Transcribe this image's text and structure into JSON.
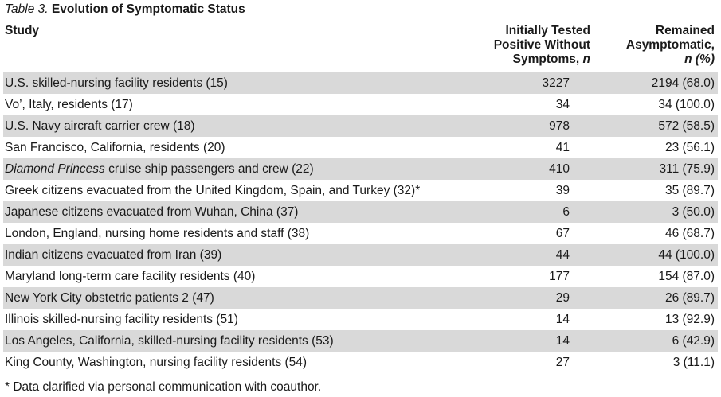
{
  "table": {
    "label": "Table 3.",
    "title": "Evolution of Symptomatic Status",
    "headers": {
      "study": "Study",
      "tested_line1": "Initially Tested",
      "tested_line2": "Positive Without",
      "tested_line3": "Symptoms,",
      "tested_n": "n",
      "remained_line1": "Remained",
      "remained_line2": "Asymptomatic,",
      "remained_n": "n (%)"
    },
    "rows": [
      {
        "study": "U.S. skilled-nursing facility residents (15)",
        "tested": "3227",
        "remained": "2194 (68.0)"
      },
      {
        "study": "Vo’, Italy, residents (17)",
        "tested": "34",
        "remained": "34 (100.0)"
      },
      {
        "study": "U.S. Navy aircraft carrier crew (18)",
        "tested": "978",
        "remained": "572 (58.5)"
      },
      {
        "study": "San Francisco, California, residents (20)",
        "tested": "41",
        "remained": "23 (56.1)"
      },
      {
        "study_italic": "Diamond Princess",
        "study_rest": " cruise ship passengers and crew (22)",
        "tested": "410",
        "remained": "311 (75.9)"
      },
      {
        "study": "Greek citizens evacuated from the United Kingdom, Spain, and Turkey (32)*",
        "tested": "39",
        "remained": "35 (89.7)"
      },
      {
        "study": "Japanese citizens evacuated from Wuhan, China (37)",
        "tested": "6",
        "remained": "3 (50.0)"
      },
      {
        "study": "London, England, nursing home residents and staff (38)",
        "tested": "67",
        "remained": "46 (68.7)"
      },
      {
        "study": "Indian citizens evacuated from Iran (39)",
        "tested": "44",
        "remained": "44 (100.0)"
      },
      {
        "study": "Maryland long-term care facility residents (40)",
        "tested": "177",
        "remained": "154 (87.0)"
      },
      {
        "study": "New York City obstetric patients 2 (47)",
        "tested": "29",
        "remained": "26 (89.7)"
      },
      {
        "study": "Illinois skilled-nursing facility residents (51)",
        "tested": "14",
        "remained": "13 (92.9)"
      },
      {
        "study": "Los Angeles, California, skilled-nursing facility residents (53)",
        "tested": "14",
        "remained": "6 (42.9)"
      },
      {
        "study": "King County, Washington, nursing facility residents (54)",
        "tested": "27",
        "remained": "3 (11.1)"
      }
    ],
    "footnote": "* Data clarified via personal communication with coauthor.",
    "colors": {
      "shade": "#d9d9d9",
      "rule": "#222222"
    }
  }
}
